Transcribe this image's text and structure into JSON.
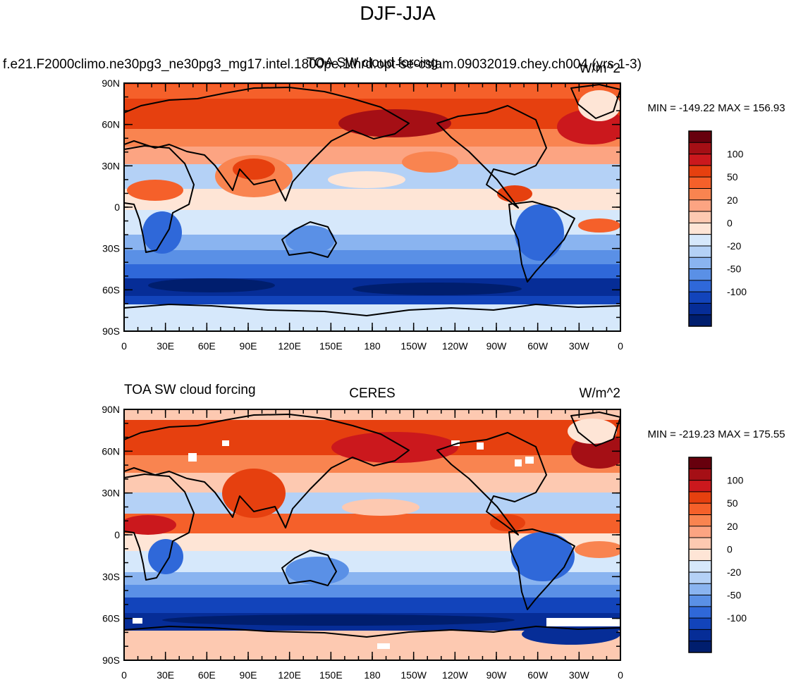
{
  "figure": {
    "title": "DJF-JJA"
  },
  "colorbar": {
    "labels": [
      "100",
      "50",
      "20",
      "0",
      "-20",
      "-50",
      "-100"
    ],
    "colors": [
      "#67000d",
      "#a50f15",
      "#cb181d",
      "#e6400f",
      "#f5602a",
      "#f98450",
      "#fca482",
      "#fdc9b1",
      "#fee5d6",
      "#d6e8fb",
      "#b4d1f6",
      "#8ab4f0",
      "#5a90e6",
      "#2f68d9",
      "#1244bb",
      "#062d97",
      "#001e6e"
    ]
  },
  "panels": [
    {
      "id": "top",
      "left_title": "f.e21.F2000climo.ne30pg3_ne30pg3_mg17.intel.1800pe.1thrd.opt-se-cslam.09032019.chey.ch004 (yrs 1-3)",
      "center_title": "TOA SW cloud forcing",
      "right_title": "W/m^2",
      "stats": "MIN = -149.22 MAX = 156.93"
    },
    {
      "id": "bottom",
      "left_title": "TOA SW cloud forcing",
      "center_title": "CERES",
      "right_title": "W/m^2",
      "stats": "MIN = -219.23 MAX = 175.55"
    }
  ],
  "axes": {
    "lat_labels": [
      "90N",
      "60N",
      "30N",
      "0",
      "30S",
      "60S",
      "90S"
    ],
    "lon_labels": [
      "0",
      "30E",
      "60E",
      "90E",
      "120E",
      "150E",
      "180",
      "150W",
      "120W",
      "90W",
      "60W",
      "30W",
      "0"
    ]
  }
}
